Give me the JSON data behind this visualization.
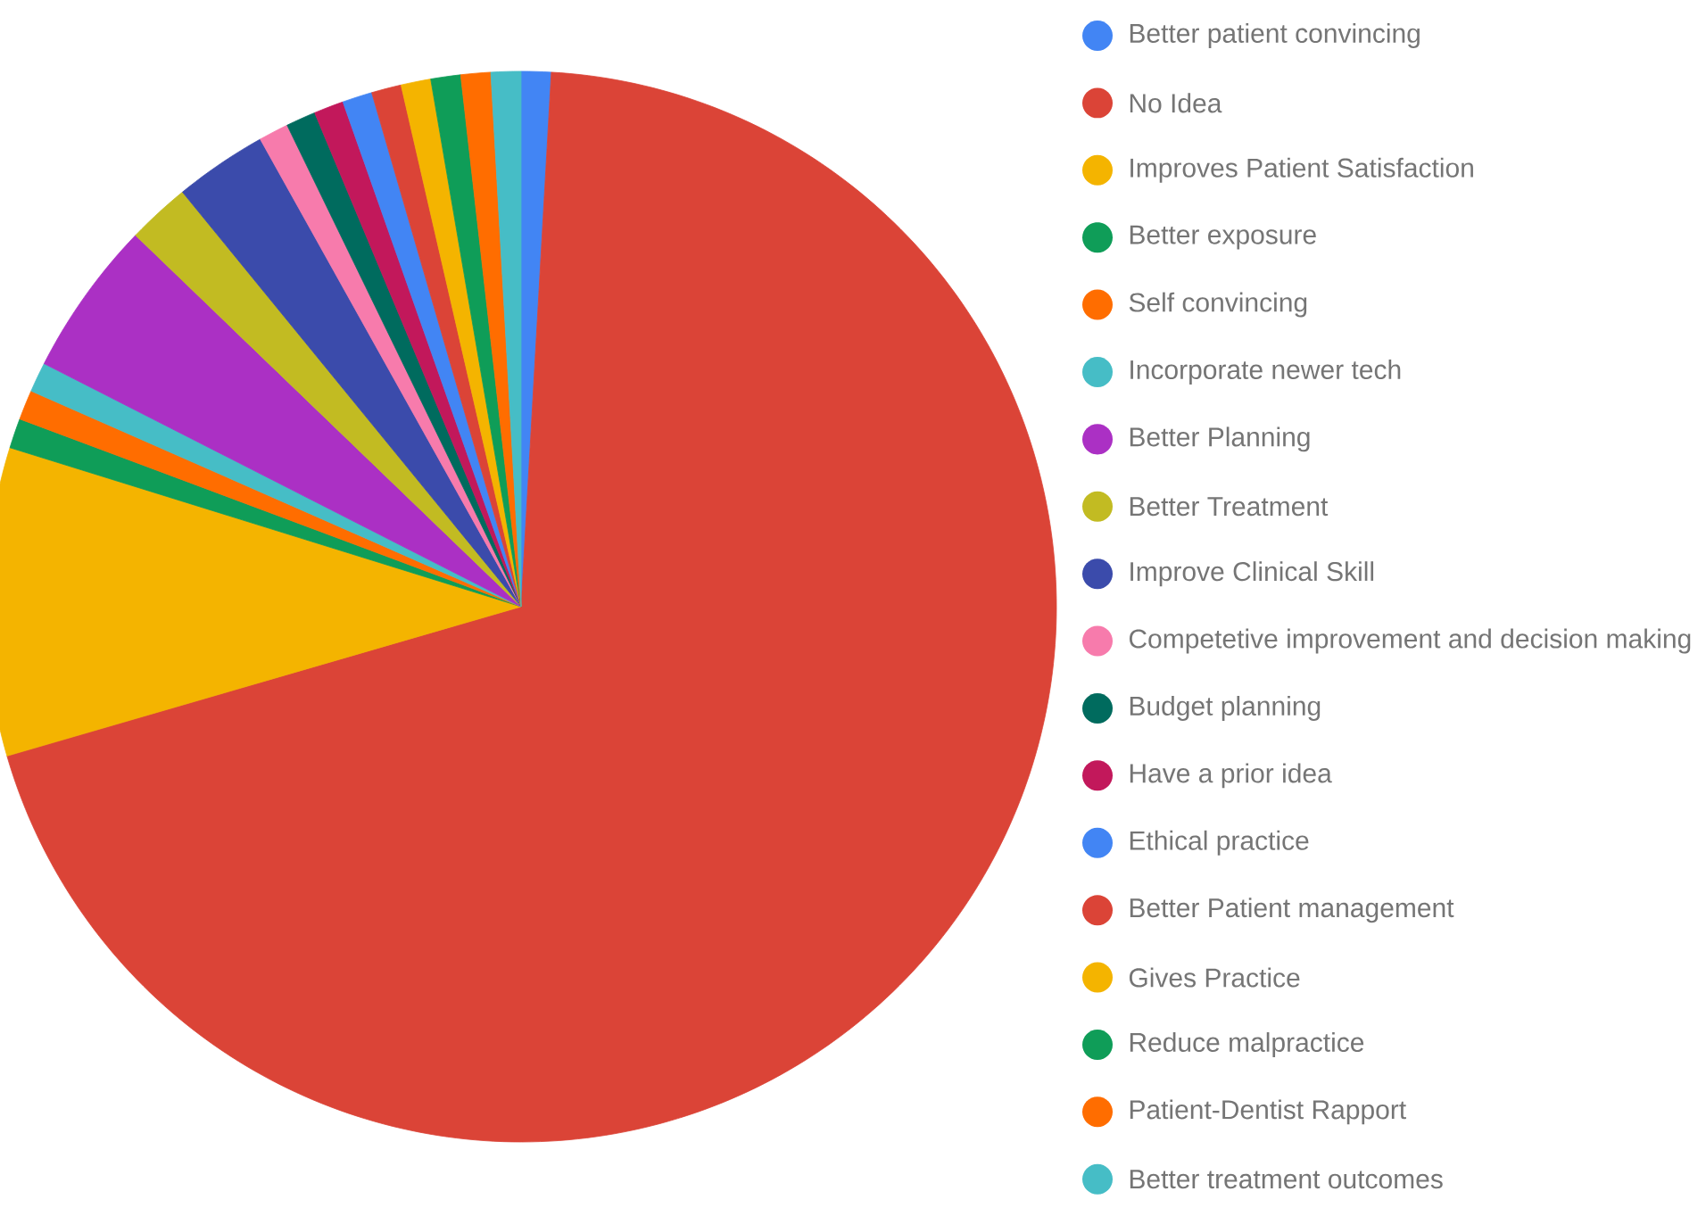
{
  "chart_data": {
    "type": "pie",
    "categories": [
      "Better patient convincing",
      "No Idea",
      "Improves Patient Satisfaction",
      "Better exposure",
      "Self convincing",
      "Incorporate newer tech",
      "Better Planning",
      "Better Treatment",
      "Improve Clinical Skill",
      "Competetive improvement and decision making",
      "Budget planning",
      "Have a prior idea",
      "Ethical practice",
      "Better Patient management",
      "Gives Practice",
      "Reduce malpractice",
      "Patient-Dentist Rapport",
      "Better treatment outcomes"
    ],
    "values": [
      0.9,
      69.6,
      9.3,
      0.9,
      0.9,
      0.9,
      4.7,
      1.9,
      2.8,
      0.9,
      0.9,
      0.9,
      0.9,
      0.9,
      0.9,
      0.9,
      0.9,
      0.9
    ],
    "colors": [
      "#4285f4",
      "#db4437",
      "#f4b400",
      "#0f9d58",
      "#ff6d00",
      "#46bdc6",
      "#ab30c4",
      "#c2bb22",
      "#3b4bab",
      "#f77bac",
      "#006b5e",
      "#c2185b",
      "#4285f4",
      "#db4437",
      "#f4b400",
      "#0f9d58",
      "#ff6d00",
      "#46bdc6"
    ],
    "legend": "right"
  }
}
